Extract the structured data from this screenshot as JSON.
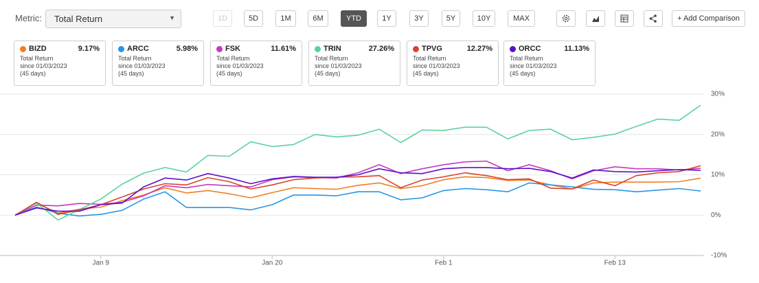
{
  "toolbar": {
    "metric_label": "Metric:",
    "metric_value": "Total Return",
    "periods": [
      "1D",
      "5D",
      "1M",
      "6M",
      "YTD",
      "1Y",
      "3Y",
      "5Y",
      "10Y",
      "MAX"
    ],
    "active_period": "YTD",
    "disabled_period": "1D",
    "add_button": "+ Add Comparison"
  },
  "cards": [
    {
      "change": "9.17%",
      "metric": "Total Return",
      "since": "since 01/03/2023",
      "days": "(45 days)"
    },
    {
      "change": "5.98%",
      "metric": "Total Return",
      "since": "since 01/03/2023",
      "days": "(45 days)"
    },
    {
      "change": "11.61%",
      "metric": "Total Return",
      "since": "since 01/03/2023",
      "days": "(45 days)"
    },
    {
      "change": "27.26%",
      "metric": "Total Return",
      "since": "since 01/03/2023",
      "days": "(45 days)"
    },
    {
      "change": "12.27%",
      "metric": "Total Return",
      "since": "since 01/03/2023",
      "days": "(45 days)"
    },
    {
      "change": "11.13%",
      "metric": "Total Return",
      "since": "since 01/03/2023",
      "days": "(45 days)"
    }
  ],
  "chart_data": {
    "type": "line",
    "categories": [
      null,
      null,
      null,
      null,
      "Jan 9",
      null,
      null,
      null,
      null,
      null,
      null,
      null,
      "Jan 20",
      null,
      null,
      null,
      null,
      null,
      null,
      null,
      "Feb 1",
      null,
      null,
      null,
      null,
      null,
      null,
      null,
      "Feb 13",
      null,
      null,
      null,
      null
    ],
    "ylim": [
      -10,
      30
    ],
    "yticks": [
      {
        "value": -10,
        "label": "-10%"
      },
      {
        "value": 0,
        "label": "0%"
      },
      {
        "value": 10,
        "label": "10%"
      },
      {
        "value": 20,
        "label": "20%"
      },
      {
        "value": 30,
        "label": "30%"
      }
    ],
    "grid": true,
    "series": [
      {
        "name": "BIZD",
        "color": "#f47d20",
        "values": [
          0,
          3,
          0.5,
          1.5,
          2,
          3.6,
          5,
          6.8,
          5.5,
          6.1,
          5.3,
          4.3,
          5.6,
          6.8,
          6.6,
          6.4,
          7.4,
          8,
          6.6,
          7.3,
          8.8,
          9.5,
          9.3,
          8.6,
          8.7,
          7.5,
          6.5,
          8,
          8.2,
          8.2,
          8.2,
          8.3,
          9.17
        ]
      },
      {
        "name": "ARCC",
        "color": "#2596e8",
        "values": [
          0,
          2,
          0.5,
          -0.2,
          0.2,
          1.2,
          4,
          5.8,
          1.9,
          1.9,
          1.9,
          1.3,
          2.6,
          5,
          5,
          4.8,
          5.8,
          5.8,
          3.8,
          4.3,
          6.1,
          6.6,
          6.3,
          5.8,
          8,
          7.5,
          7,
          6.4,
          6.3,
          5.8,
          6.2,
          6.6,
          5.98
        ]
      },
      {
        "name": "FSK",
        "color": "#c837bd",
        "values": [
          0,
          2.5,
          2.3,
          2.9,
          2.7,
          3.2,
          4.8,
          7.3,
          6.8,
          7.6,
          7.3,
          7,
          8.8,
          9.5,
          9.3,
          9.2,
          10.5,
          12.5,
          10.3,
          11.5,
          12.5,
          13.2,
          13.4,
          11,
          12.5,
          11,
          9,
          11,
          12,
          11.5,
          11.5,
          11.2,
          11.61
        ]
      },
      {
        "name": "TRIN",
        "color": "#5ad39b",
        "values": [
          0,
          3,
          -1.2,
          1.4,
          4,
          7.7,
          10.4,
          11.8,
          10.7,
          14.8,
          14.6,
          18.2,
          17,
          17.5,
          20,
          19.4,
          19.8,
          21.3,
          18,
          21.1,
          21,
          21.8,
          21.8,
          18.9,
          21,
          21.3,
          18.7,
          19.3,
          20.1,
          22,
          23.8,
          23.5,
          27.26
        ]
      },
      {
        "name": "TPVG",
        "color": "#d6442e",
        "values": [
          0,
          3.2,
          0.2,
          1.3,
          2.6,
          4.5,
          6.5,
          7.8,
          7.5,
          9.3,
          8.3,
          6.5,
          7.5,
          8.8,
          9.2,
          9.4,
          9.5,
          9.8,
          6.8,
          8.7,
          9.5,
          10.5,
          9.8,
          8.8,
          9,
          6.7,
          6.5,
          8.7,
          7.3,
          9.8,
          10.5,
          10.8,
          12.27
        ]
      },
      {
        "name": "ORCC",
        "color": "#5a10c9",
        "values": [
          0,
          1.8,
          1,
          1,
          2.6,
          3,
          7,
          9.2,
          8.7,
          10.3,
          9.2,
          7.8,
          9,
          9.6,
          9.4,
          9.4,
          10,
          11.5,
          10.5,
          10.3,
          11.5,
          11.8,
          11.8,
          11.5,
          11.6,
          10.8,
          9.2,
          11.2,
          10.8,
          10.7,
          11,
          11.3,
          11.13
        ]
      }
    ]
  }
}
